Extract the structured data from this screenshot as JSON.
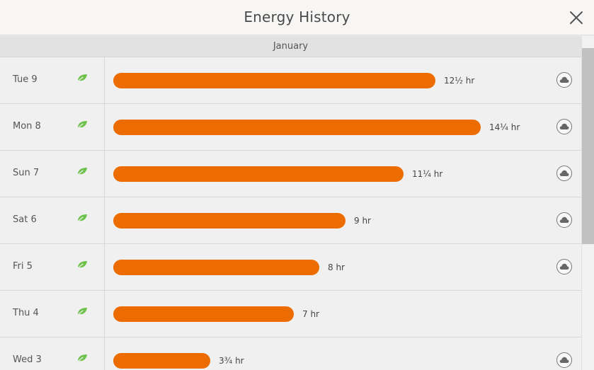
{
  "header": {
    "title": "Energy History"
  },
  "month": "January",
  "max_hours": 14.25,
  "days": [
    {
      "day": "Tue 9",
      "duration": "12½ hr",
      "hours": 12.5,
      "leaf": true,
      "weather": true
    },
    {
      "day": "Mon 8",
      "duration": "14¼ hr",
      "hours": 14.25,
      "leaf": true,
      "weather": true
    },
    {
      "day": "Sun 7",
      "duration": "11¼ hr",
      "hours": 11.25,
      "leaf": true,
      "weather": true
    },
    {
      "day": "Sat 6",
      "duration": "9 hr",
      "hours": 9,
      "leaf": true,
      "weather": true
    },
    {
      "day": "Fri 5",
      "duration": "8 hr",
      "hours": 8,
      "leaf": true,
      "weather": true
    },
    {
      "day": "Thu 4",
      "duration": "7 hr",
      "hours": 7,
      "leaf": true,
      "weather": false
    },
    {
      "day": "Wed 3",
      "duration": "3¾ hr",
      "hours": 3.75,
      "leaf": true,
      "weather": true
    }
  ],
  "icons": {
    "close": "close-icon",
    "leaf": "leaf-icon",
    "weather": "cloud-icon"
  },
  "colors": {
    "bar": "#ec6c00",
    "leaf": "#6cc24a",
    "background": "#f0f0f0"
  }
}
